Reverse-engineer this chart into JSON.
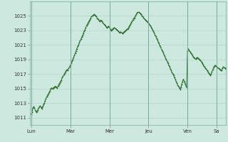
{
  "background_color": "#cce8df",
  "plot_bg_color": "#cce8df",
  "line_color": "#2d6e2d",
  "marker": "+",
  "marker_size": 1.5,
  "line_width": 0.7,
  "ylim": [
    1010,
    1027
  ],
  "yticks": [
    1011,
    1013,
    1015,
    1017,
    1019,
    1021,
    1023,
    1025
  ],
  "grid_color": "#aaccc4",
  "tick_labels": [
    "Lun",
    "Mar",
    "Mer",
    "Jeu",
    "Ven",
    "Sa"
  ],
  "tick_positions": [
    0,
    48,
    96,
    144,
    192,
    228
  ],
  "pressure_data": [
    1011.5,
    1011.8,
    1012.3,
    1012.5,
    1012.3,
    1012.0,
    1011.8,
    1011.9,
    1012.1,
    1012.3,
    1012.5,
    1012.6,
    1012.4,
    1012.2,
    1012.5,
    1012.8,
    1013.0,
    1013.3,
    1013.6,
    1013.9,
    1014.1,
    1014.3,
    1014.5,
    1014.7,
    1015.0,
    1015.1,
    1015.0,
    1015.1,
    1015.2,
    1015.3,
    1015.3,
    1015.2,
    1015.1,
    1015.4,
    1015.6,
    1015.8,
    1016.0,
    1016.2,
    1016.5,
    1016.7,
    1016.9,
    1017.1,
    1017.3,
    1017.5,
    1017.6,
    1017.5,
    1017.8,
    1018.0,
    1018.2,
    1018.5,
    1018.8,
    1019.0,
    1019.3,
    1019.6,
    1019.9,
    1020.2,
    1020.5,
    1020.8,
    1021.0,
    1021.3,
    1021.6,
    1021.8,
    1022.1,
    1022.3,
    1022.6,
    1022.9,
    1023.1,
    1023.4,
    1023.7,
    1023.9,
    1024.1,
    1024.3,
    1024.5,
    1024.7,
    1024.9,
    1025.0,
    1025.1,
    1025.2,
    1025.1,
    1025.0,
    1024.9,
    1024.7,
    1024.6,
    1024.4,
    1024.3,
    1024.4,
    1024.4,
    1024.3,
    1024.1,
    1023.9,
    1023.8,
    1023.7,
    1023.5,
    1023.4,
    1023.5,
    1023.6,
    1023.4,
    1023.2,
    1023.0,
    1023.1,
    1023.2,
    1023.3,
    1023.4,
    1023.3,
    1023.2,
    1023.1,
    1023.0,
    1022.9,
    1022.8,
    1022.7,
    1022.8,
    1022.7,
    1022.6,
    1022.7,
    1022.8,
    1022.9,
    1023.0,
    1023.1,
    1023.2,
    1023.3,
    1023.5,
    1023.7,
    1023.9,
    1024.1,
    1024.3,
    1024.5,
    1024.7,
    1024.8,
    1025.0,
    1025.2,
    1025.4,
    1025.5,
    1025.5,
    1025.4,
    1025.3,
    1025.2,
    1025.0,
    1024.9,
    1024.8,
    1024.6,
    1024.5,
    1024.4,
    1024.3,
    1024.2,
    1024.1,
    1023.9,
    1023.7,
    1023.5,
    1023.3,
    1023.1,
    1022.9,
    1022.7,
    1022.4,
    1022.2,
    1021.9,
    1021.7,
    1021.4,
    1021.2,
    1020.9,
    1020.7,
    1020.4,
    1020.2,
    1020.0,
    1019.7,
    1019.5,
    1019.2,
    1019.0,
    1018.7,
    1018.5,
    1018.2,
    1018.0,
    1017.7,
    1017.5,
    1017.2,
    1017.0,
    1016.8,
    1016.5,
    1016.3,
    1016.0,
    1015.8,
    1015.5,
    1015.3,
    1015.1,
    1014.9,
    1015.2,
    1015.6,
    1016.0,
    1016.3,
    1016.0,
    1015.7,
    1015.4,
    1015.2,
    1020.2,
    1020.5,
    1020.3,
    1020.1,
    1019.9,
    1019.8,
    1019.6,
    1019.4,
    1019.3,
    1019.2,
    1019.1,
    1019.2,
    1019.3,
    1019.2,
    1019.1,
    1019.0,
    1018.9,
    1018.7,
    1018.5,
    1018.3,
    1018.1,
    1018.0,
    1017.8,
    1017.7,
    1017.5,
    1017.3,
    1017.1,
    1017.0,
    1016.8,
    1017.0,
    1017.3,
    1017.6,
    1017.9,
    1018.1,
    1018.2,
    1018.1,
    1018.0,
    1017.9,
    1017.8,
    1017.7,
    1017.6,
    1017.5,
    1017.5,
    1017.8,
    1018.0,
    1017.9,
    1017.8,
    1017.7
  ]
}
